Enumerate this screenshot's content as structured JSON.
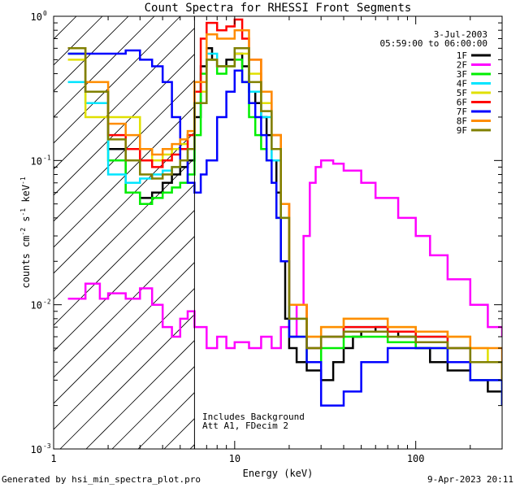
{
  "footer": {
    "generated_by": "Generated by hsi_min_spectra_plot.pro",
    "timestamp": "9-Apr-2023 20:11"
  },
  "chart_data": {
    "type": "line",
    "title": "Count Spectra for RHESSI Front Segments",
    "xlabel": "Energy (keV)",
    "ylabel_parts": [
      "counts cm",
      "-2",
      " s",
      "-1",
      " keV",
      "-1"
    ],
    "xscale": "log",
    "yscale": "log",
    "xlim": [
      1,
      300
    ],
    "ylim": [
      0.001,
      1
    ],
    "x_tick_labels": [
      {
        "value": 1,
        "label": "1"
      },
      {
        "value": 10,
        "label": "10"
      },
      {
        "value": 100,
        "label": "100"
      }
    ],
    "y_tick_labels": [
      {
        "value": 0.001,
        "label": "10",
        "exp": "-3"
      },
      {
        "value": 0.01,
        "label": "10",
        "exp": "-2"
      },
      {
        "value": 0.1,
        "label": "10",
        "exp": "-1"
      },
      {
        "value": 1,
        "label": "10",
        "exp": "0"
      }
    ],
    "threshold_energy": 6,
    "annotation_date": "3-Jul-2003",
    "annotation_time": "05:59:00 to 06:00:00",
    "notes": [
      "Includes Background",
      "Att A1, FDecim 2"
    ],
    "legend_position": "top-right",
    "series": [
      {
        "name": "1F",
        "color": "#000000",
        "x": [
          1.2,
          1.5,
          2,
          2.5,
          3,
          3.5,
          4,
          4.5,
          5,
          5.5,
          6,
          6.5,
          7,
          7.5,
          8,
          9,
          10,
          11,
          12,
          13,
          14,
          15,
          16,
          17,
          18,
          19,
          20,
          22,
          25,
          30,
          35,
          40,
          45,
          50,
          60,
          70,
          80,
          100,
          120,
          150,
          200,
          250,
          300
        ],
        "y": [
          0.6,
          0.3,
          0.12,
          0.06,
          0.055,
          0.06,
          0.07,
          0.08,
          0.09,
          0.1,
          0.2,
          0.45,
          0.6,
          0.5,
          0.45,
          0.5,
          0.55,
          0.45,
          0.3,
          0.25,
          0.2,
          0.15,
          0.1,
          0.06,
          0.02,
          0.008,
          0.005,
          0.004,
          0.0035,
          0.003,
          0.004,
          0.005,
          0.006,
          0.0065,
          0.007,
          0.0065,
          0.006,
          0.005,
          0.004,
          0.0035,
          0.003,
          0.0025,
          0.002
        ]
      },
      {
        "name": "2F",
        "color": "#ff00ff",
        "x": [
          1.2,
          1.5,
          1.8,
          2,
          2.5,
          3,
          3.5,
          4,
          4.5,
          5,
          5.5,
          6,
          7,
          8,
          9,
          10,
          12,
          14,
          16,
          18,
          20,
          22,
          24,
          26,
          28,
          30,
          35,
          40,
          50,
          60,
          80,
          100,
          120,
          150,
          200,
          250,
          300
        ],
        "y": [
          0.011,
          0.014,
          0.011,
          0.012,
          0.011,
          0.013,
          0.01,
          0.007,
          0.006,
          0.008,
          0.009,
          0.007,
          0.005,
          0.006,
          0.005,
          0.0055,
          0.005,
          0.006,
          0.005,
          0.007,
          0.006,
          0.01,
          0.03,
          0.07,
          0.09,
          0.1,
          0.095,
          0.085,
          0.07,
          0.055,
          0.04,
          0.03,
          0.022,
          0.015,
          0.01,
          0.007,
          0.006
        ]
      },
      {
        "name": "3F",
        "color": "#00ee00",
        "x": [
          1.2,
          1.5,
          2,
          2.5,
          3,
          3.5,
          4,
          4.5,
          5,
          5.5,
          6,
          6.5,
          7,
          8,
          9,
          10,
          11,
          12,
          13,
          14,
          15,
          16,
          17,
          18,
          20,
          25,
          30,
          40,
          50,
          70,
          100,
          150,
          200,
          300
        ],
        "y": [
          0.55,
          0.25,
          0.1,
          0.06,
          0.05,
          0.055,
          0.06,
          0.065,
          0.07,
          0.08,
          0.15,
          0.4,
          0.5,
          0.4,
          0.45,
          0.5,
          0.35,
          0.2,
          0.15,
          0.12,
          0.1,
          0.07,
          0.04,
          0.02,
          0.006,
          0.004,
          0.005,
          0.006,
          0.006,
          0.0055,
          0.005,
          0.004,
          0.003,
          0.002
        ]
      },
      {
        "name": "4F",
        "color": "#00e5ff",
        "x": [
          1.2,
          1.5,
          2,
          2.5,
          3,
          3.5,
          4,
          4.5,
          5,
          5.5,
          6,
          7,
          8,
          10,
          12,
          14,
          16,
          18,
          20,
          25,
          30,
          40,
          50,
          70,
          100,
          150,
          200,
          300
        ],
        "y": [
          0.35,
          0.25,
          0.08,
          0.07,
          0.075,
          0.08,
          0.085,
          0.09,
          0.1,
          0.12,
          0.25,
          0.55,
          0.45,
          0.6,
          0.3,
          0.2,
          0.1,
          0.04,
          0.008,
          0.005,
          0.006,
          0.007,
          0.007,
          0.0065,
          0.006,
          0.005,
          0.004,
          0.003
        ]
      },
      {
        "name": "5F",
        "color": "#e0e000",
        "x": [
          1.2,
          1.5,
          2,
          2.5,
          3,
          3.5,
          4,
          4.5,
          5,
          5.5,
          6,
          7,
          8,
          10,
          12,
          14,
          16,
          18,
          20,
          25,
          30,
          40,
          50,
          70,
          100,
          150,
          200,
          250,
          300
        ],
        "y": [
          0.5,
          0.2,
          0.2,
          0.2,
          0.12,
          0.1,
          0.11,
          0.12,
          0.13,
          0.15,
          0.3,
          0.5,
          0.45,
          0.55,
          0.4,
          0.25,
          0.15,
          0.05,
          0.01,
          0.006,
          0.007,
          0.008,
          0.008,
          0.007,
          0.0065,
          0.006,
          0.005,
          0.004,
          0.003
        ]
      },
      {
        "name": "6F",
        "color": "#ff0000",
        "x": [
          1.2,
          1.5,
          2,
          2.5,
          3,
          3.5,
          4,
          4.5,
          5,
          5.5,
          6,
          6.5,
          7,
          8,
          9,
          10,
          11,
          12,
          14,
          16,
          18,
          20,
          25,
          30,
          40,
          50,
          70,
          100,
          150,
          200,
          300
        ],
        "y": [
          0.6,
          0.3,
          0.15,
          0.12,
          0.1,
          0.09,
          0.1,
          0.11,
          0.12,
          0.15,
          0.3,
          0.7,
          0.9,
          0.8,
          0.85,
          0.95,
          0.7,
          0.5,
          0.3,
          0.15,
          0.05,
          0.01,
          0.005,
          0.006,
          0.007,
          0.007,
          0.0065,
          0.006,
          0.005,
          0.004,
          0.003
        ]
      },
      {
        "name": "7F",
        "color": "#0000ff",
        "x": [
          1.2,
          1.5,
          2,
          2.5,
          3,
          3.5,
          4,
          4.5,
          5,
          5.5,
          6,
          6.5,
          7,
          8,
          9,
          10,
          11,
          12,
          13,
          14,
          15,
          16,
          17,
          18,
          20,
          25,
          30,
          35,
          40,
          50,
          70,
          100,
          150,
          200,
          300
        ],
        "y": [
          0.55,
          0.55,
          0.55,
          0.58,
          0.5,
          0.45,
          0.35,
          0.2,
          0.1,
          0.07,
          0.06,
          0.08,
          0.1,
          0.2,
          0.3,
          0.42,
          0.35,
          0.25,
          0.2,
          0.15,
          0.1,
          0.07,
          0.04,
          0.02,
          0.006,
          0.004,
          0.002,
          0.002,
          0.0025,
          0.004,
          0.005,
          0.005,
          0.004,
          0.003,
          0.002
        ]
      },
      {
        "name": "8F",
        "color": "#ff8c00",
        "x": [
          1.2,
          1.5,
          2,
          2.5,
          3,
          3.5,
          4,
          4.5,
          5,
          5.5,
          6,
          7,
          8,
          10,
          12,
          14,
          16,
          18,
          20,
          25,
          30,
          40,
          50,
          70,
          100,
          150,
          200,
          300
        ],
        "y": [
          0.6,
          0.35,
          0.18,
          0.15,
          0.12,
          0.11,
          0.12,
          0.13,
          0.14,
          0.16,
          0.35,
          0.75,
          0.7,
          0.8,
          0.5,
          0.3,
          0.15,
          0.05,
          0.01,
          0.006,
          0.007,
          0.008,
          0.008,
          0.007,
          0.0065,
          0.006,
          0.005,
          0.003
        ]
      },
      {
        "name": "9F",
        "color": "#808000",
        "x": [
          1.2,
          1.5,
          2,
          2.5,
          3,
          3.5,
          4,
          4.5,
          5,
          5.5,
          6,
          7,
          8,
          10,
          12,
          14,
          16,
          18,
          20,
          25,
          30,
          40,
          50,
          70,
          100,
          150,
          200,
          300
        ],
        "y": [
          0.6,
          0.3,
          0.14,
          0.1,
          0.08,
          0.075,
          0.08,
          0.09,
          0.1,
          0.12,
          0.25,
          0.5,
          0.45,
          0.6,
          0.35,
          0.22,
          0.12,
          0.04,
          0.008,
          0.005,
          0.006,
          0.0065,
          0.0065,
          0.006,
          0.0055,
          0.005,
          0.004,
          0.003
        ]
      }
    ]
  }
}
